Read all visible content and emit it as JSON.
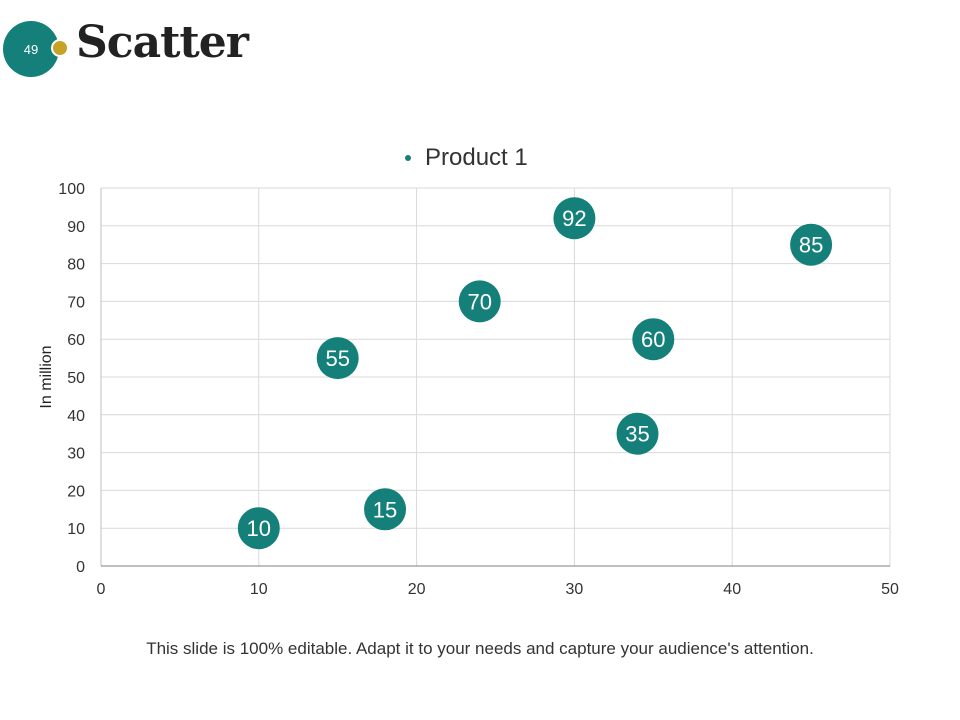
{
  "slide": {
    "number": "49",
    "title": "Scatter",
    "footer": "This slide is 100% editable. Adapt it to your needs and capture your audience's attention."
  },
  "colors": {
    "accent": "#15807a",
    "dot": "#c8a227",
    "grid": "#d9d9d9"
  },
  "chart_data": {
    "type": "scatter",
    "title": "",
    "xlabel": "",
    "ylabel": "In million",
    "xlim": [
      0,
      50
    ],
    "ylim": [
      0,
      100
    ],
    "x_ticks": [
      0,
      10,
      20,
      30,
      40,
      50
    ],
    "y_ticks": [
      0,
      10,
      20,
      30,
      40,
      50,
      60,
      70,
      80,
      90,
      100
    ],
    "grid": true,
    "legend": "top-center",
    "series": [
      {
        "name": "Product 1",
        "points": [
          {
            "x": 10,
            "y": 10,
            "label": "10"
          },
          {
            "x": 15,
            "y": 55,
            "label": "55"
          },
          {
            "x": 18,
            "y": 15,
            "label": "15"
          },
          {
            "x": 24,
            "y": 70,
            "label": "70"
          },
          {
            "x": 30,
            "y": 92,
            "label": "92"
          },
          {
            "x": 34,
            "y": 35,
            "label": "35"
          },
          {
            "x": 35,
            "y": 60,
            "label": "60"
          },
          {
            "x": 45,
            "y": 85,
            "label": "85"
          }
        ]
      }
    ]
  }
}
